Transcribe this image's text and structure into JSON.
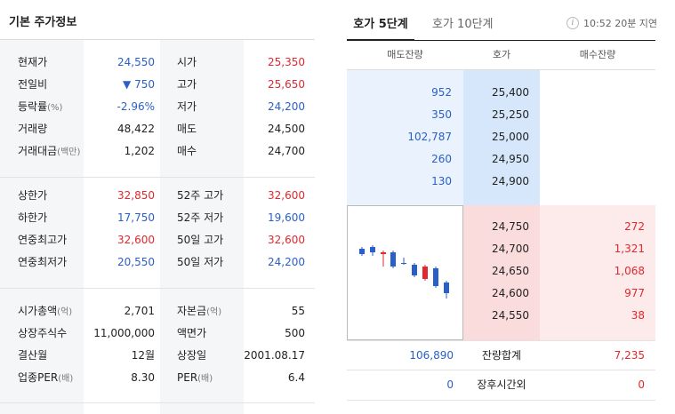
{
  "left": {
    "title": "기본 주가정보",
    "section1": [
      {
        "l1": "현재가",
        "v1": "24,550",
        "c1": "blue",
        "l2": "시가",
        "v2": "25,350",
        "c2": "red"
      },
      {
        "l1": "전일비",
        "v1": "▼ 750",
        "c1": "blue",
        "l2": "고가",
        "v2": "25,650",
        "c2": "red"
      },
      {
        "l1": "등락률",
        "l1s": "(%)",
        "v1": "-2.96%",
        "c1": "blue",
        "l2": "저가",
        "v2": "24,200",
        "c2": "blue"
      },
      {
        "l1": "거래량",
        "v1": "48,422",
        "c1": "",
        "l2": "매도",
        "v2": "24,500",
        "c2": ""
      },
      {
        "l1": "거래대금",
        "l1s": "(백만)",
        "v1": "1,202",
        "c1": "",
        "l2": "매수",
        "v2": "24,700",
        "c2": ""
      }
    ],
    "section2": [
      {
        "l1": "상한가",
        "v1": "32,850",
        "c1": "red",
        "l2": "52주 고가",
        "v2": "32,600",
        "c2": "red"
      },
      {
        "l1": "하한가",
        "v1": "17,750",
        "c1": "blue",
        "l2": "52주 저가",
        "v2": "19,600",
        "c2": "blue"
      },
      {
        "l1": "연중최고가",
        "v1": "32,600",
        "c1": "red",
        "l2": "50일 고가",
        "v2": "32,600",
        "c2": "red"
      },
      {
        "l1": "연중최저가",
        "v1": "20,550",
        "c1": "blue",
        "l2": "50일 저가",
        "v2": "24,200",
        "c2": "blue"
      }
    ],
    "section3": [
      {
        "l1": "시가총액",
        "l1s": "(억)",
        "v1": "2,701",
        "c1": "",
        "l2": "자본금",
        "l2s": "(억)",
        "v2": "55",
        "c2": ""
      },
      {
        "l1": "상장주식수",
        "v1": "11,000,000",
        "c1": "",
        "l2": "액면가",
        "v2": "500",
        "c2": ""
      },
      {
        "l1": "결산월",
        "v1": "12월",
        "c1": "",
        "l2": "상장일",
        "v2": "2001.08.17",
        "c2": ""
      },
      {
        "l1": "업종PER",
        "l1s": "(배)",
        "v1": "8.30",
        "c1": "",
        "l2": "PER",
        "l2s": "(배)",
        "v2": "6.4",
        "c2": ""
      }
    ]
  },
  "right": {
    "tabs": [
      {
        "label": "호가 5단계",
        "active": true
      },
      {
        "label": "호가 10단계",
        "active": false
      }
    ],
    "info_icon": "info-icon",
    "time_text": "10:52 20분 지연",
    "headers": {
      "sell": "매도잔량",
      "price": "호가",
      "buy": "매수잔량"
    },
    "asks": [
      {
        "qty": "952",
        "price": "25,400"
      },
      {
        "qty": "350",
        "price": "25,250"
      },
      {
        "qty": "102,787",
        "price": "25,000"
      },
      {
        "qty": "260",
        "price": "24,950"
      },
      {
        "qty": "130",
        "price": "24,900"
      }
    ],
    "bids": [
      {
        "price": "24,750",
        "qty": "272"
      },
      {
        "price": "24,700",
        "qty": "1,321"
      },
      {
        "price": "24,650",
        "qty": "1,068"
      },
      {
        "price": "24,600",
        "qty": "977"
      },
      {
        "price": "24,550",
        "qty": "38"
      }
    ],
    "total": {
      "sell": "106,890",
      "label": "잔량합계",
      "buy": "7,235"
    },
    "after": {
      "sell": "0",
      "label": "장후시간외",
      "buy": "0"
    }
  },
  "colors": {
    "up": "#e0282e",
    "down": "#2a5fc8",
    "ask_bg": "#e9f2fd",
    "bid_bg": "#fdeaea"
  }
}
